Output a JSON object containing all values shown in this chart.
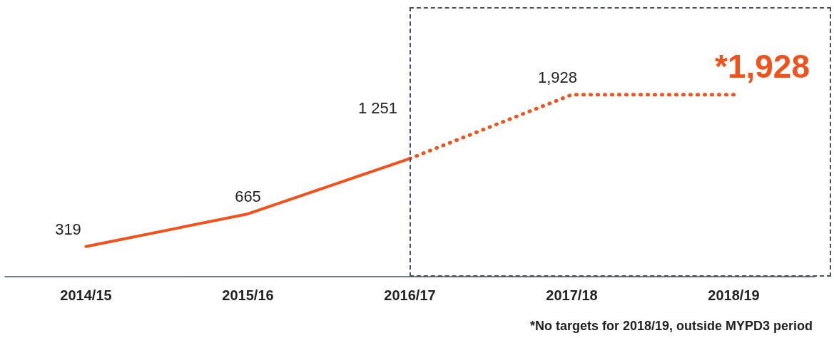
{
  "chart_data": {
    "type": "line",
    "categories": [
      "2014/15",
      "2015/16",
      "2016/17",
      "2017/18",
      "2018/19"
    ],
    "series": [
      {
        "color": "#f0521e",
        "line_style": "solid",
        "values": [
          319,
          665,
          1251,
          null,
          null
        ],
        "value_labels": [
          "319",
          "665",
          "1 251",
          null,
          null
        ]
      },
      {
        "color": "#f0521e",
        "line_style": "dotted",
        "values": [
          null,
          null,
          1251,
          1928,
          1928
        ],
        "value_labels": [
          null,
          null,
          null,
          "1,928",
          "*1,928"
        ]
      }
    ],
    "tick_labels": "x",
    "grid": false,
    "marker": "none",
    "annotations": [
      "*No targets for 2018/19, outside MYPD3 period"
    ]
  }
}
